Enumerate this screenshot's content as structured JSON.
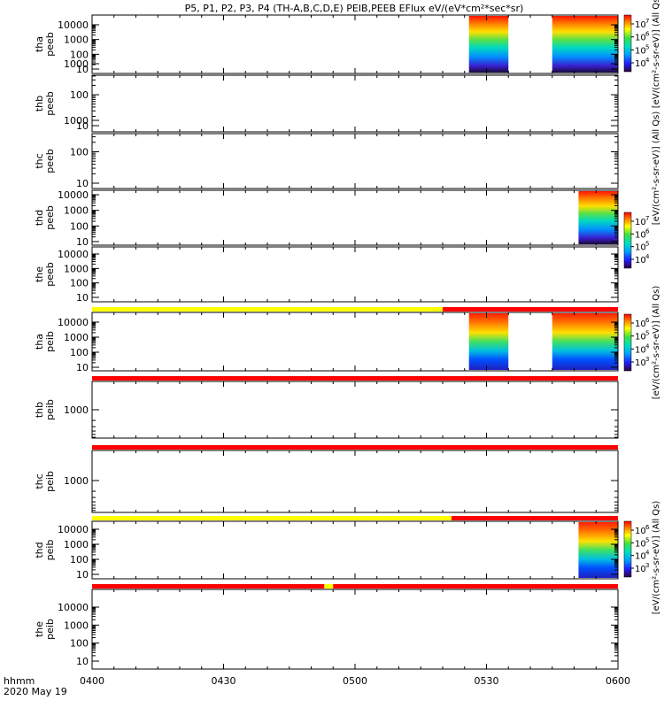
{
  "chart_data": {
    "type": "heatmap",
    "title": "P5, P1, P2, P3, P4 (TH-A,B,C,D,E) PEIB,PEEB EFlux eV/(eV*cm²*sec*sr)",
    "x_axis": {
      "ticks": [
        "0400",
        "0430",
        "0500",
        "0530",
        "0600"
      ],
      "tick_values_min": [
        0,
        30,
        60,
        90,
        120
      ],
      "range_min": [
        0,
        120
      ],
      "label_line1": "hhmm",
      "label_line2": "2020 May 19"
    },
    "log_scale_y": true,
    "panels": [
      {
        "ylabel1": "tha",
        "ylabel2": "peeb",
        "yticks": [
          "10",
          "100",
          "1000",
          "10000"
        ],
        "data_intervals_min": [
          [
            86,
            95
          ],
          [
            105,
            120
          ]
        ],
        "colorbar": {
          "label": "[eV/(cm²-s-sr-eV)] (All Qs)",
          "exp": [
            "7",
            "6",
            "5",
            "4"
          ]
        }
      },
      {
        "ylabel1": "thb",
        "ylabel2": "peeb",
        "yticks": [
          "10",
          "100",
          "1000"
        ],
        "data_intervals_min": []
      },
      {
        "ylabel1": "thc",
        "ylabel2": "peeb",
        "yticks": [
          "10",
          "100",
          "1000"
        ],
        "data_intervals_min": []
      },
      {
        "ylabel1": "thd",
        "ylabel2": "peeb",
        "yticks": [
          "10",
          "100",
          "1000",
          "10000"
        ],
        "data_intervals_min": [
          [
            111,
            120
          ]
        ],
        "colorbar": {
          "label": "[eV/(cm²-s-sr-eV)] (All Qs)",
          "exp": [
            "7",
            "6",
            "5",
            "4"
          ]
        }
      },
      {
        "ylabel1": "the",
        "ylabel2": "peeb",
        "yticks": [
          "10",
          "100",
          "1000",
          "10000"
        ],
        "data_intervals_min": []
      },
      {
        "ylabel1": "tha",
        "ylabel2": "peib",
        "yticks": [
          "10",
          "100",
          "1000",
          "10000"
        ],
        "data_intervals_min": [
          [
            86,
            95
          ],
          [
            105,
            120
          ]
        ],
        "colorbar": {
          "label": "[eV/(cm²-s-sr-eV)] (All Qs)",
          "exp": [
            "6",
            "5",
            "4",
            "3"
          ]
        }
      },
      {
        "ylabel1": "thb",
        "ylabel2": "peib",
        "yticks": [
          "1000"
        ],
        "data_intervals_min": []
      },
      {
        "ylabel1": "thc",
        "ylabel2": "peib",
        "yticks": [
          "1000"
        ],
        "data_intervals_min": []
      },
      {
        "ylabel1": "thd",
        "ylabel2": "peib",
        "yticks": [
          "10",
          "100",
          "1000",
          "10000"
        ],
        "data_intervals_min": [
          [
            111,
            120
          ]
        ],
        "colorbar": {
          "label": "[eV/(cm²-s-sr-eV)] (All Qs)",
          "exp": [
            "6",
            "5",
            "4",
            "3"
          ]
        }
      },
      {
        "ylabel1": "the",
        "ylabel2": "peib",
        "yticks": [
          "10",
          "100",
          "1000",
          "10000"
        ],
        "data_intervals_min": []
      }
    ],
    "mode_bars": [
      {
        "segments": [
          [
            "yellow",
            0,
            80
          ],
          [
            "red",
            80,
            120
          ]
        ]
      },
      {
        "segments": [
          [
            "red",
            0,
            120
          ]
        ]
      },
      {
        "segments": [
          [
            "red",
            0,
            120
          ]
        ]
      },
      {
        "segments": [
          [
            "yellow",
            0,
            82
          ],
          [
            "red",
            82,
            120
          ]
        ]
      },
      {
        "segments": [
          [
            "red",
            0,
            53
          ],
          [
            "yellow",
            53,
            55
          ],
          [
            "red",
            55,
            120
          ]
        ]
      }
    ],
    "colors": {
      "yellow": "#ffff00",
      "red": "#ff0000"
    }
  }
}
